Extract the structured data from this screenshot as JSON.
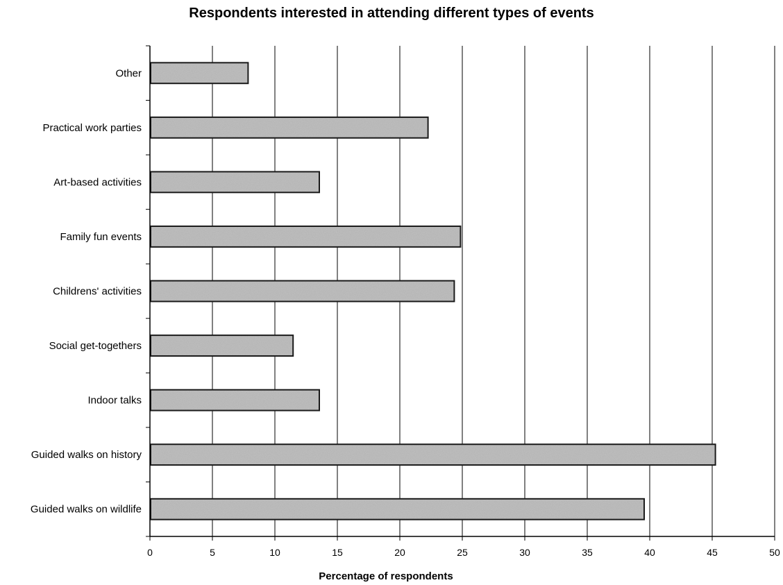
{
  "chart_data": {
    "type": "bar",
    "orientation": "horizontal",
    "title": "Respondents interested in attending different types of  events",
    "xlabel": "Percentage of respondents",
    "ylabel": "",
    "categories": [
      "Other",
      "Practical work parties",
      "Art-based activities",
      "Family fun events",
      "Childrens' activities",
      "Social get-togethers",
      "Indoor talks",
      "Guided walks on history",
      "Guided walks on wildlife"
    ],
    "values": [
      7.8,
      22.2,
      13.5,
      24.8,
      24.3,
      11.4,
      13.5,
      45.2,
      39.5
    ],
    "xlim": [
      0,
      50
    ],
    "xticks": [
      "0",
      "5",
      "10",
      "15",
      "20",
      "25",
      "30",
      "35",
      "40",
      "45",
      "50"
    ],
    "grid": "vertical",
    "legend": "none",
    "colors": {
      "bar_fill": "#8c8c8c",
      "bar_stroke": "#1a1a1a",
      "grid": "#000000"
    }
  }
}
